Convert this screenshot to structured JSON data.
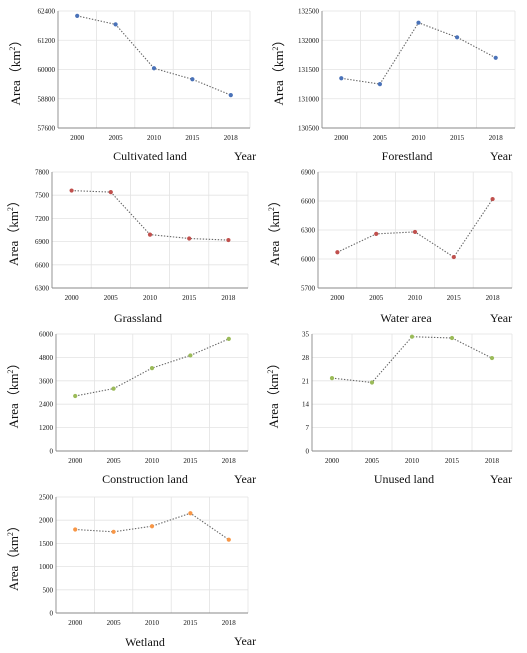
{
  "chart_data": [
    {
      "type": "line",
      "title": "Cultivated land",
      "xlabel": "Year",
      "ylabel": "Area（km²）",
      "ylabel_parts": [
        "Area（km",
        "2",
        "）"
      ],
      "x": [
        "2000",
        "2005",
        "2010",
        "2015",
        "2018"
      ],
      "values": [
        62200,
        61850,
        60050,
        59600,
        58950
      ],
      "ylim": [
        57600,
        62400
      ],
      "yticks": [
        "57600",
        "58800",
        "60000",
        "61200",
        "62400"
      ],
      "marker_color": "#4a72b8",
      "grid": true
    },
    {
      "type": "line",
      "title": "Forestland",
      "xlabel": "Year",
      "ylabel": "Area（km²）",
      "ylabel_parts": [
        "Area（km",
        "2",
        "）"
      ],
      "x": [
        "2000",
        "2005",
        "2010",
        "2015",
        "2018"
      ],
      "values": [
        131350,
        131250,
        132300,
        132050,
        131700
      ],
      "ylim": [
        130500,
        132500
      ],
      "yticks": [
        "130500",
        "131000",
        "131500",
        "132000",
        "132500"
      ],
      "marker_color": "#4a72b8",
      "grid": true
    },
    {
      "type": "line",
      "title": "Grassland",
      "xlabel": "",
      "ylabel": "Area（km²）",
      "ylabel_parts": [
        "Area（km",
        "2",
        "）"
      ],
      "x": [
        "2000",
        "2005",
        "2010",
        "2015",
        "2018"
      ],
      "values": [
        7560,
        7540,
        6990,
        6940,
        6920
      ],
      "ylim": [
        6300,
        7800
      ],
      "yticks": [
        "6300",
        "6600",
        "6900",
        "7200",
        "7500",
        "7800"
      ],
      "marker_color": "#c0504d",
      "grid": true
    },
    {
      "type": "line",
      "title": "Water area",
      "xlabel": "Year",
      "ylabel": "Area（km²）",
      "ylabel_parts": [
        "Area（km",
        "2",
        "）"
      ],
      "x": [
        "2000",
        "2005",
        "2010",
        "2015",
        "2018"
      ],
      "values": [
        6070,
        6260,
        6280,
        6020,
        6620
      ],
      "ylim": [
        5700,
        6900
      ],
      "yticks": [
        "5700",
        "6000",
        "6300",
        "6600",
        "6900"
      ],
      "marker_color": "#c0504d",
      "grid": true
    },
    {
      "type": "line",
      "title": "Construction land",
      "xlabel": "Year",
      "ylabel": "Area（km²）",
      "ylabel_parts": [
        "Area（km",
        "2",
        "）"
      ],
      "x": [
        "2000",
        "2005",
        "2010",
        "2015",
        "2018"
      ],
      "values": [
        2820,
        3200,
        4250,
        4900,
        5750
      ],
      "ylim": [
        0,
        6000
      ],
      "yticks": [
        "0",
        "1200",
        "2400",
        "3600",
        "4800",
        "6000"
      ],
      "marker_color": "#9bbb59",
      "grid": true
    },
    {
      "type": "line",
      "title": "Unused land",
      "xlabel": "Year",
      "ylabel": "Area（km²）",
      "ylabel_parts": [
        "Area（km",
        "2",
        "）"
      ],
      "x": [
        "2000",
        "2005",
        "2010",
        "2015",
        "2018"
      ],
      "values": [
        21.8,
        20.5,
        34.2,
        33.8,
        27.8
      ],
      "ylim": [
        0,
        35
      ],
      "yticks": [
        "0",
        "7",
        "14",
        "21",
        "28",
        "35"
      ],
      "marker_color": "#9bbb59",
      "grid": true
    },
    {
      "type": "line",
      "title": "Wetland",
      "xlabel": "Year",
      "ylabel": "Area（km²）",
      "ylabel_parts": [
        "Area（km",
        "2",
        "）"
      ],
      "x": [
        "2000",
        "2005",
        "2010",
        "2015",
        "2018"
      ],
      "values": [
        1800,
        1750,
        1870,
        2150,
        1580
      ],
      "ylim": [
        0,
        2500
      ],
      "yticks": [
        "0",
        "500",
        "1000",
        "1500",
        "2000",
        "2500"
      ],
      "marker_color": "#f79646",
      "grid": true
    }
  ]
}
